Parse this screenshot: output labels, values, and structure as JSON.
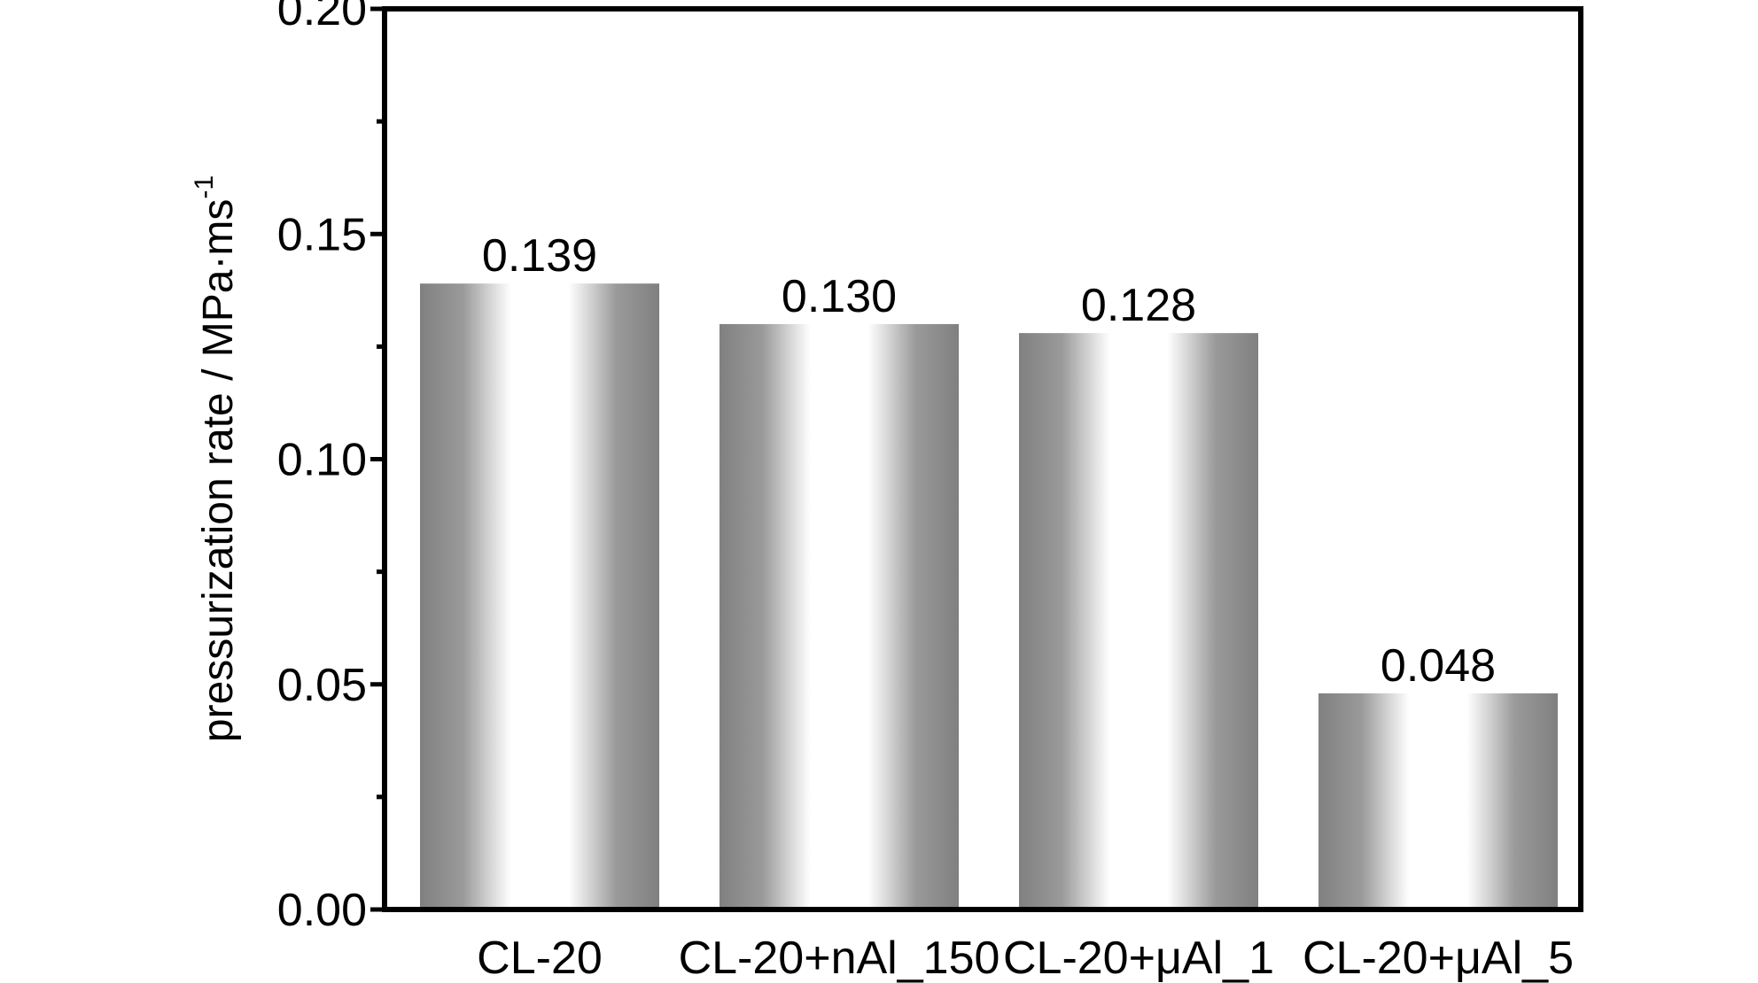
{
  "chart_data": {
    "type": "bar",
    "title": "",
    "xlabel": "",
    "ylabel": "pressurization rate / MPa·ms",
    "ylabel_superscript": "-1",
    "categories": [
      "CL-20",
      "CL-20+nAl_150",
      "CL-20+μAl_1",
      "CL-20+μAl_5"
    ],
    "values": [
      0.139,
      0.13,
      0.128,
      0.048
    ],
    "data_labels": [
      "0.139",
      "0.130",
      "0.128",
      "0.048"
    ],
    "ylim": [
      0,
      0.2
    ],
    "yticks": [
      0.0,
      0.05,
      0.1,
      0.15,
      0.2
    ],
    "ytick_labels": [
      "0.00",
      "0.05",
      "0.10",
      "0.15",
      "0.20"
    ],
    "minor_ticks": [
      0.025,
      0.075,
      0.125,
      0.175
    ],
    "grid": false,
    "legend": "none",
    "bar_style": "gray gradient with white center",
    "colors": {
      "bar_dark": "#808080",
      "bar_mid": "#c8c8c8",
      "bar_light": "#ffffff",
      "axis": "#000000"
    }
  }
}
